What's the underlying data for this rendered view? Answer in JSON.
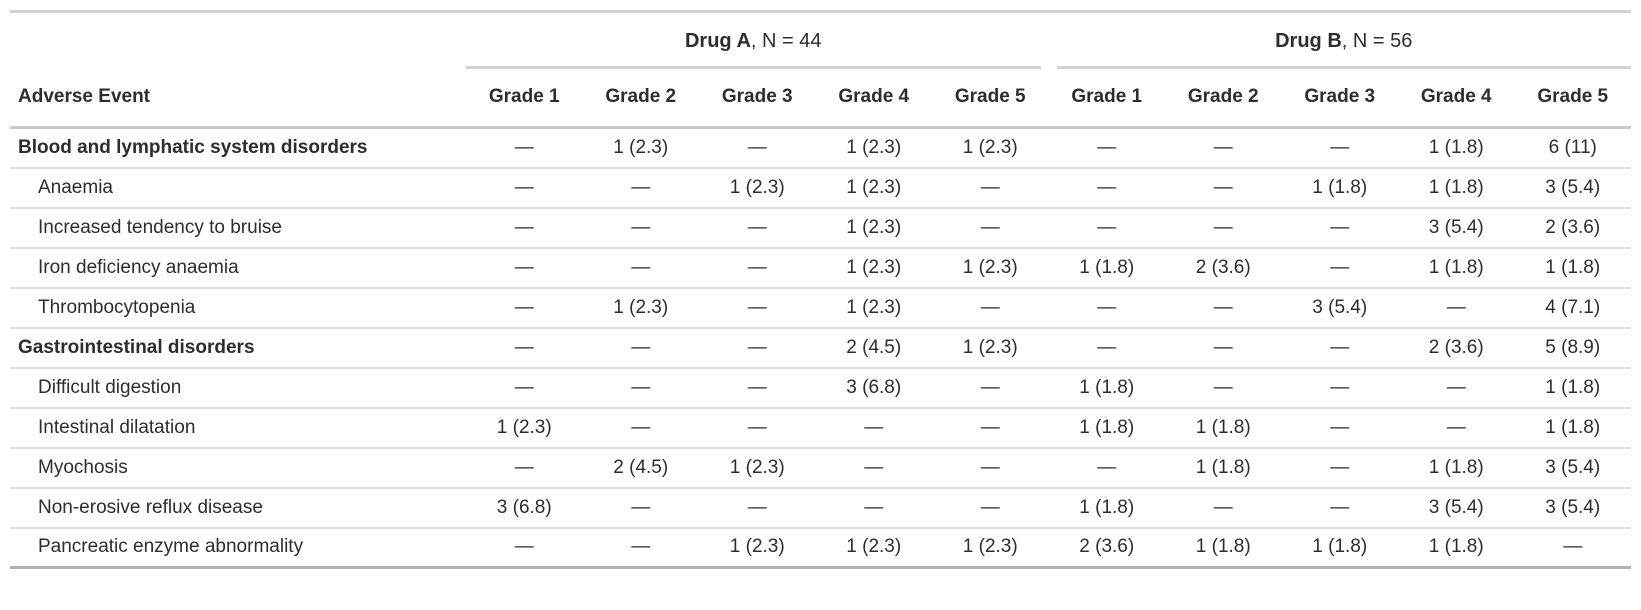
{
  "colors": {
    "text": "#2d2d2d",
    "rule_top": "#d1d1d1",
    "rule_header": "#c9c9c9",
    "rule_row": "#e0e0e0",
    "rule_bottom": "#b2b2b2",
    "bg": "#ffffff"
  },
  "chart_data": {
    "type": "table",
    "title": "",
    "row_header": "Adverse Event",
    "column_groups": [
      {
        "drug": "Drug A",
        "n_suffix": ", N = 44"
      },
      {
        "drug": "Drug B",
        "n_suffix": ", N = 56"
      }
    ],
    "grade_labels": [
      "Grade 1",
      "Grade 2",
      "Grade 3",
      "Grade 4",
      "Grade 5"
    ],
    "empty_cell_symbol": "—",
    "rows": [
      {
        "label": "Blood and lymphatic system disorders",
        "group": true,
        "drug_a": [
          "—",
          "1 (2.3)",
          "—",
          "1 (2.3)",
          "1 (2.3)"
        ],
        "drug_b": [
          "—",
          "—",
          "—",
          "1 (1.8)",
          "6 (11)"
        ]
      },
      {
        "label": "Anaemia",
        "group": false,
        "drug_a": [
          "—",
          "—",
          "1 (2.3)",
          "1 (2.3)",
          "—"
        ],
        "drug_b": [
          "—",
          "—",
          "1 (1.8)",
          "1 (1.8)",
          "3 (5.4)"
        ]
      },
      {
        "label": "Increased tendency to bruise",
        "group": false,
        "drug_a": [
          "—",
          "—",
          "—",
          "1 (2.3)",
          "—"
        ],
        "drug_b": [
          "—",
          "—",
          "—",
          "3 (5.4)",
          "2 (3.6)"
        ]
      },
      {
        "label": "Iron deficiency anaemia",
        "group": false,
        "drug_a": [
          "—",
          "—",
          "—",
          "1 (2.3)",
          "1 (2.3)"
        ],
        "drug_b": [
          "1 (1.8)",
          "2 (3.6)",
          "—",
          "1 (1.8)",
          "1 (1.8)"
        ]
      },
      {
        "label": "Thrombocytopenia",
        "group": false,
        "drug_a": [
          "—",
          "1 (2.3)",
          "—",
          "1 (2.3)",
          "—"
        ],
        "drug_b": [
          "—",
          "—",
          "3 (5.4)",
          "—",
          "4 (7.1)"
        ]
      },
      {
        "label": "Gastrointestinal disorders",
        "group": true,
        "drug_a": [
          "—",
          "—",
          "—",
          "2 (4.5)",
          "1 (2.3)"
        ],
        "drug_b": [
          "—",
          "—",
          "—",
          "2 (3.6)",
          "5 (8.9)"
        ]
      },
      {
        "label": "Difficult digestion",
        "group": false,
        "drug_a": [
          "—",
          "—",
          "—",
          "3 (6.8)",
          "—"
        ],
        "drug_b": [
          "1 (1.8)",
          "—",
          "—",
          "—",
          "1 (1.8)"
        ]
      },
      {
        "label": "Intestinal dilatation",
        "group": false,
        "drug_a": [
          "1 (2.3)",
          "—",
          "—",
          "—",
          "—"
        ],
        "drug_b": [
          "1 (1.8)",
          "1 (1.8)",
          "—",
          "—",
          "1 (1.8)"
        ]
      },
      {
        "label": "Myochosis",
        "group": false,
        "drug_a": [
          "—",
          "2 (4.5)",
          "1 (2.3)",
          "—",
          "—"
        ],
        "drug_b": [
          "—",
          "1 (1.8)",
          "—",
          "1 (1.8)",
          "3 (5.4)"
        ]
      },
      {
        "label": "Non-erosive reflux disease",
        "group": false,
        "drug_a": [
          "3 (6.8)",
          "—",
          "—",
          "—",
          "—"
        ],
        "drug_b": [
          "1 (1.8)",
          "—",
          "—",
          "3 (5.4)",
          "3 (5.4)"
        ]
      },
      {
        "label": "Pancreatic enzyme abnormality",
        "group": false,
        "drug_a": [
          "—",
          "—",
          "1 (2.3)",
          "1 (2.3)",
          "1 (2.3)"
        ],
        "drug_b": [
          "2 (3.6)",
          "1 (1.8)",
          "1 (1.8)",
          "1 (1.8)",
          "—"
        ]
      }
    ]
  }
}
